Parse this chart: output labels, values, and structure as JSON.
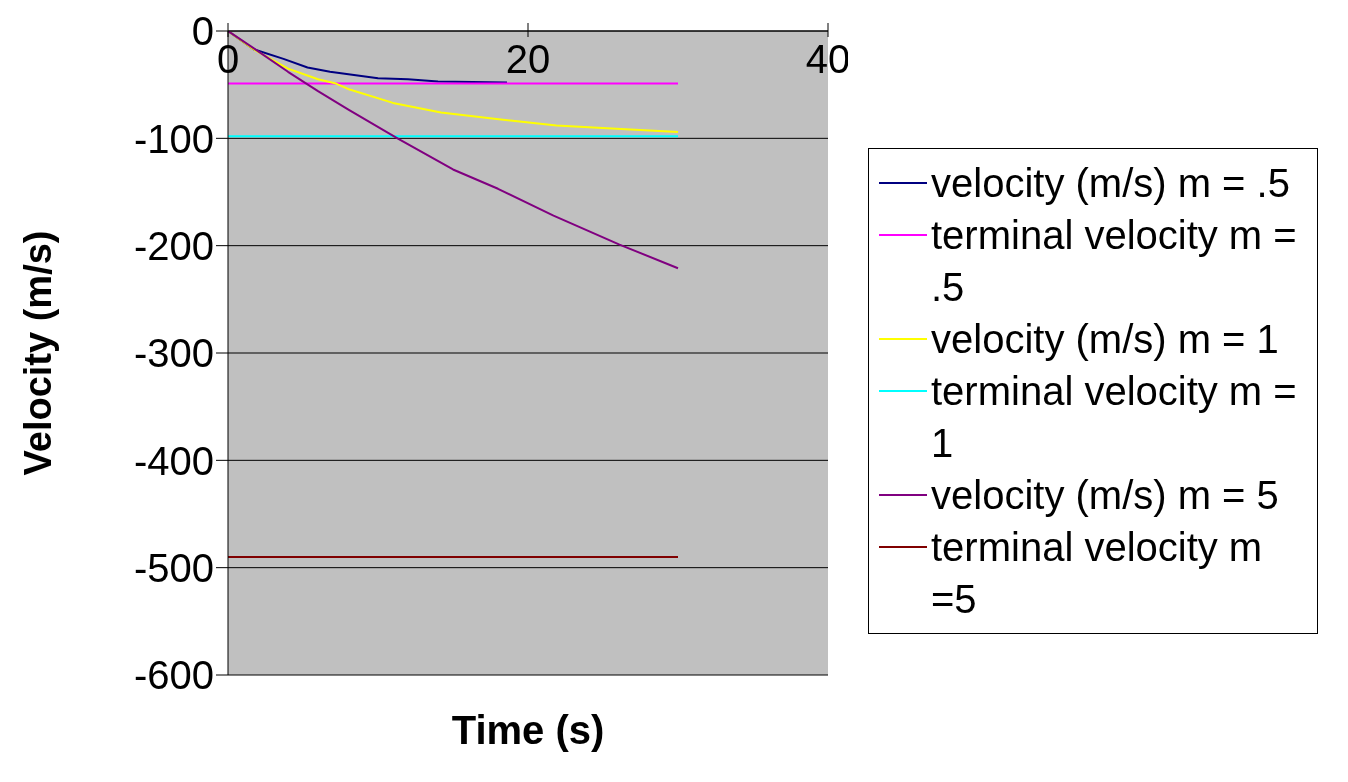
{
  "chart_data": {
    "type": "line",
    "xlabel": "Time (s)",
    "ylabel": "Velocity (m/s)",
    "xlim": [
      0,
      40
    ],
    "xticks": [
      0,
      20,
      40
    ],
    "ylim": [
      -600,
      0
    ],
    "yticks": [
      -600,
      -500,
      -400,
      -300,
      -200,
      -100,
      0
    ],
    "grid": "y",
    "legend": "right",
    "marker": "none",
    "line_style": "solid",
    "series": [
      {
        "name": "velocity (m/s) m = .5",
        "color": "#000080",
        "x": [
          0,
          1.7,
          3.7,
          5.3,
          6.8,
          10,
          12,
          14,
          18.6
        ],
        "values": [
          0,
          -17,
          -26,
          -34,
          -38,
          -44,
          -45,
          -47,
          -48
        ]
      },
      {
        "name": "terminal velocity m = .5",
        "color": "#ff00ff",
        "x": [
          0,
          30
        ],
        "values": [
          -49,
          -49
        ]
      },
      {
        "name": "velocity (m/s) m = 1",
        "color": "#ffff00",
        "x": [
          0,
          1.7,
          4,
          6,
          7.2,
          8,
          11,
          14.2,
          17.9,
          21.9,
          25.9,
          30
        ],
        "values": [
          0,
          -17,
          -35,
          -45,
          -49,
          -54,
          -67,
          -76,
          -82,
          -88,
          -91,
          -94
        ]
      },
      {
        "name": "terminal velocity m = 1",
        "color": "#00ffff",
        "x": [
          0,
          30
        ],
        "values": [
          -98,
          -98
        ]
      },
      {
        "name": "velocity (m/s) m = 5",
        "color": "#800080",
        "x": [
          0,
          1.7,
          4,
          6,
          8,
          11.3,
          15,
          18,
          21.7,
          26.1,
          30
        ],
        "values": [
          0,
          -16,
          -38,
          -56,
          -73,
          -100,
          -129,
          -147,
          -172,
          -199,
          -221
        ]
      },
      {
        "name": "terminal velocity m =5",
        "color": "#800000",
        "x": [
          0,
          30
        ],
        "values": [
          -490,
          -490
        ]
      }
    ]
  }
}
